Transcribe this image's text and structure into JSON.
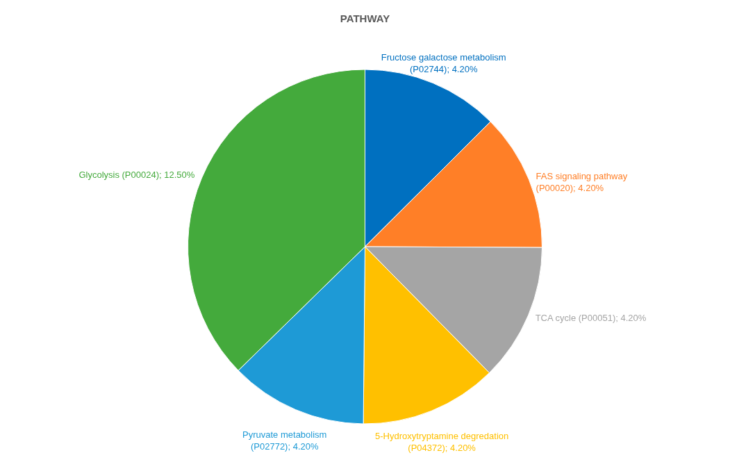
{
  "chart_data": {
    "type": "pie",
    "title": "PATHWAY",
    "categories": [
      "Fructose galactose metabolism (P02744)",
      "FAS signaling pathway (P00020)",
      "TCA cycle (P00051)",
      "5-Hydroxytryptamine degredation (P04372)",
      "Pyruvate metabolism (P02772)",
      "Glycolysis (P00024)"
    ],
    "values": [
      4.2,
      4.2,
      4.2,
      4.2,
      4.2,
      12.5
    ],
    "value_labels": [
      "4.20%",
      "4.20%",
      "4.20%",
      "4.20%",
      "4.20%",
      "12.50%"
    ],
    "colors": [
      "#0070c0",
      "#ff7f27",
      "#a5a5a5",
      "#ffc000",
      "#1e9ad6",
      "#44aa3c"
    ],
    "legend": false
  }
}
